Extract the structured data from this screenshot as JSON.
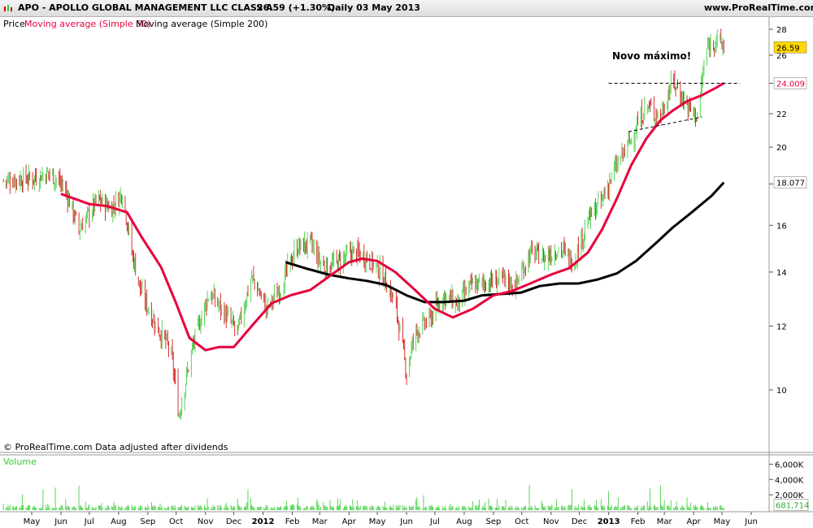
{
  "header": {
    "title": "APO - APOLLO GLOBAL MANAGEMENT LLC CLASS A",
    "quote": "26.59 (+1.30%)",
    "period": "Daily  03 May 2013",
    "site": "www.ProRealTime.com"
  },
  "legend": {
    "price": "Price",
    "ma50": "Moving average (Simple 50)",
    "ma200": "Moving average (Simple 200)"
  },
  "footer": {
    "credit": "© ProRealTime.com  Data adjusted after dividends"
  },
  "colors": {
    "up": "#33cc33",
    "down": "#cc0000",
    "ma50": "#e8003c",
    "ma200": "#000000",
    "volume": "#33cc33",
    "price_tag": "#ffd800"
  },
  "chart_data": {
    "type": "line",
    "scale": "log",
    "ylim": [
      9,
      29
    ],
    "y_ticks": [
      10,
      12,
      14,
      16,
      18,
      20,
      22,
      24,
      26,
      28
    ],
    "x_labels": [
      "May",
      "Jun",
      "Jul",
      "Aug",
      "Sep",
      "Oct",
      "Nov",
      "Dec",
      "2012",
      "Feb",
      "Mar",
      "Apr",
      "May",
      "Jun",
      "Jul",
      "Aug",
      "Sep",
      "Oct",
      "Nov",
      "Dec",
      "2013",
      "Feb",
      "Mar",
      "Apr",
      "May",
      "Jun"
    ],
    "year_labels": [
      "2012",
      "2013"
    ],
    "x_ticks": [
      "2011-05-01",
      "2011-06-01",
      "2011-07-01",
      "2011-08-01",
      "2011-09-01",
      "2011-10-01",
      "2011-11-01",
      "2011-12-01",
      "2012-01-01",
      "2012-02-01",
      "2012-03-01",
      "2012-04-01",
      "2012-05-01",
      "2012-06-01",
      "2012-07-01",
      "2012-08-01",
      "2012-09-01",
      "2012-10-01",
      "2012-11-01",
      "2012-12-01",
      "2013-01-01",
      "2013-02-01",
      "2013-03-01",
      "2013-04-01",
      "2013-05-01",
      "2013-06-01"
    ],
    "last_price": "26.59",
    "ma50_value": "24.009",
    "ma200_value": "18.077",
    "annotation": "Novo máximo!",
    "price": {
      "x": [
        "2011-04-01",
        "2011-05-01",
        "2011-05-20",
        "2011-06-05",
        "2011-06-20",
        "2011-07-10",
        "2011-07-25",
        "2011-08-05",
        "2011-08-15",
        "2011-08-25",
        "2011-09-10",
        "2011-09-25",
        "2011-10-04",
        "2011-10-20",
        "2011-11-05",
        "2011-11-20",
        "2011-12-05",
        "2011-12-20",
        "2012-01-05",
        "2012-01-20",
        "2012-02-05",
        "2012-02-20",
        "2012-03-05",
        "2012-03-20",
        "2012-04-05",
        "2012-04-20",
        "2012-05-05",
        "2012-05-20",
        "2012-06-01",
        "2012-06-10",
        "2012-06-25",
        "2012-07-10",
        "2012-07-25",
        "2012-08-10",
        "2012-08-25",
        "2012-09-10",
        "2012-09-25",
        "2012-10-10",
        "2012-10-25",
        "2012-11-10",
        "2012-11-25",
        "2012-12-10",
        "2012-12-25",
        "2013-01-10",
        "2013-01-25",
        "2013-02-10",
        "2013-02-25",
        "2013-03-10",
        "2013-03-25",
        "2013-04-05",
        "2013-04-15",
        "2013-04-25",
        "2013-05-03"
      ],
      "y": [
        18.2,
        18.3,
        18.6,
        17.8,
        15.8,
        17.2,
        16.8,
        17.6,
        14.8,
        13.2,
        12.0,
        11.2,
        9.3,
        11.5,
        13.2,
        12.5,
        11.8,
        13.8,
        12.6,
        13.4,
        15.0,
        15.2,
        14.2,
        14.4,
        14.8,
        14.6,
        14.0,
        12.8,
        10.5,
        11.8,
        12.2,
        13.1,
        12.8,
        13.5,
        13.6,
        13.7,
        13.5,
        14.8,
        14.6,
        15.0,
        14.4,
        16.2,
        17.2,
        19.0,
        20.5,
        22.5,
        21.8,
        24.2,
        22.5,
        21.8,
        26.5,
        27.3,
        26.59
      ]
    },
    "ma50": {
      "x": [
        "2011-06-01",
        "2011-07-01",
        "2011-07-20",
        "2011-08-10",
        "2011-08-25",
        "2011-09-15",
        "2011-10-01",
        "2011-10-15",
        "2011-11-01",
        "2011-11-15",
        "2011-12-01",
        "2011-12-20",
        "2012-01-10",
        "2012-01-30",
        "2012-02-20",
        "2012-03-10",
        "2012-04-01",
        "2012-04-15",
        "2012-05-01",
        "2012-05-20",
        "2012-06-10",
        "2012-07-01",
        "2012-07-20",
        "2012-08-10",
        "2012-09-01",
        "2012-09-20",
        "2012-10-10",
        "2012-11-01",
        "2012-11-20",
        "2012-12-10",
        "2012-12-25",
        "2013-01-10",
        "2013-01-25",
        "2013-02-10",
        "2013-02-25",
        "2013-03-10",
        "2013-03-25",
        "2013-04-10",
        "2013-04-25",
        "2013-05-03"
      ],
      "y": [
        17.5,
        17.0,
        16.9,
        16.6,
        15.5,
        14.2,
        12.8,
        11.6,
        11.2,
        11.3,
        11.3,
        12.0,
        12.8,
        13.1,
        13.3,
        13.8,
        14.4,
        14.55,
        14.45,
        14.0,
        13.3,
        12.6,
        12.3,
        12.6,
        13.1,
        13.25,
        13.55,
        13.9,
        14.15,
        14.8,
        15.8,
        17.3,
        19.0,
        20.5,
        21.6,
        22.2,
        22.8,
        23.2,
        23.7,
        24.009
      ]
    },
    "ma200": {
      "x": [
        "2012-01-25",
        "2012-02-15",
        "2012-03-10",
        "2012-04-01",
        "2012-04-20",
        "2012-05-10",
        "2012-06-01",
        "2012-06-20",
        "2012-07-10",
        "2012-08-01",
        "2012-08-20",
        "2012-09-10",
        "2012-09-30",
        "2012-10-20",
        "2012-11-10",
        "2012-11-30",
        "2012-12-20",
        "2013-01-10",
        "2013-01-30",
        "2013-02-20",
        "2013-03-10",
        "2013-03-30",
        "2013-04-20",
        "2013-05-03"
      ],
      "y": [
        14.4,
        14.15,
        13.9,
        13.75,
        13.65,
        13.5,
        13.1,
        12.85,
        12.85,
        12.9,
        13.1,
        13.15,
        13.2,
        13.45,
        13.55,
        13.55,
        13.7,
        13.95,
        14.45,
        15.2,
        15.9,
        16.6,
        17.4,
        18.077
      ]
    },
    "resistance_level": 24.0,
    "support_line": {
      "x": [
        "2013-01-22",
        "2013-04-10"
      ],
      "y": [
        20.9,
        21.8
      ]
    },
    "volume": {
      "label": "Volume",
      "last": "681,714",
      "y_ticks": [
        "6,000K",
        "4,000K",
        "2,000K"
      ],
      "y_tick_values": [
        6000000,
        4000000,
        2000000
      ],
      "ylim": [
        0,
        7000000
      ]
    }
  }
}
